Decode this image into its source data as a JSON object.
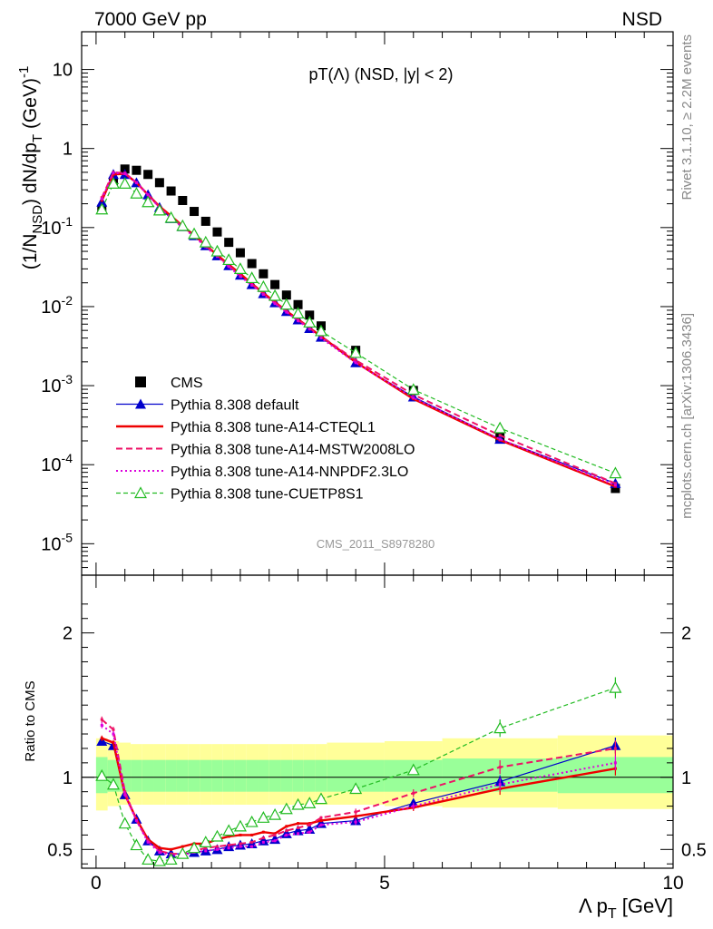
{
  "header": {
    "left_label": "7000 GeV pp",
    "right_label": "NSD"
  },
  "side_labels": {
    "rivet": "Rivet 3.1.10, ≥ 2.2M events",
    "mcplots": "mcplots.cern.ch [arXiv:1306.3436]"
  },
  "analysis_tag": "CMS_2011_S8978280",
  "chart_data": [
    {
      "type": "scatter",
      "panel": "main",
      "title": "pT(Λ) (NSD, |y| < 2)",
      "ylabel": "(1/N_NSD) dN/dp_T (GeV)^-1",
      "yscale": "log",
      "ylim": [
        4e-06,
        30
      ],
      "xlim": [
        -0.25,
        10
      ],
      "legend_position": "lower-left",
      "y_tick_labels": [
        "10^-5",
        "10^-4",
        "10^-3",
        "10^-2",
        "10^-1",
        "1",
        "10"
      ],
      "series": [
        {
          "name": "CMS",
          "style": "data",
          "color": "#000000",
          "x": [
            0.1,
            0.3,
            0.5,
            0.7,
            0.9,
            1.1,
            1.3,
            1.5,
            1.7,
            1.9,
            2.1,
            2.3,
            2.5,
            2.7,
            2.9,
            3.1,
            3.3,
            3.5,
            3.7,
            3.9,
            4.5,
            5.5,
            7.0,
            9.0
          ],
          "y": [
            0.17,
            0.38,
            0.55,
            0.53,
            0.47,
            0.37,
            0.29,
            0.22,
            0.16,
            0.12,
            0.088,
            0.065,
            0.048,
            0.035,
            0.026,
            0.019,
            0.014,
            0.0106,
            0.0078,
            0.0057,
            0.0028,
            0.00087,
            0.00022,
            5e-05
          ]
        },
        {
          "name": "Pythia 8.308 default",
          "style": "tri",
          "color": "#0000cc",
          "x": [
            0.1,
            0.3,
            0.5,
            0.7,
            0.9,
            1.1,
            1.3,
            1.5,
            1.7,
            1.9,
            2.1,
            2.3,
            2.5,
            2.7,
            2.9,
            3.1,
            3.3,
            3.5,
            3.7,
            3.9,
            4.5,
            5.5,
            7.0,
            9.0
          ],
          "y": [
            0.21,
            0.47,
            0.47,
            0.37,
            0.26,
            0.18,
            0.13,
            0.103,
            0.079,
            0.059,
            0.044,
            0.033,
            0.025,
            0.019,
            0.0146,
            0.0112,
            0.0087,
            0.0068,
            0.0053,
            0.0041,
            0.00195,
            0.00072,
            0.00021,
            5.8e-05
          ]
        },
        {
          "name": "Pythia 8.308 tune-A14-CTEQL1",
          "style": "solid",
          "color": "#ee0000",
          "x": [
            0.1,
            0.3,
            0.5,
            0.7,
            0.9,
            1.1,
            1.3,
            1.5,
            1.7,
            1.9,
            2.1,
            2.3,
            2.5,
            2.7,
            2.9,
            3.1,
            3.3,
            3.5,
            3.7,
            3.9,
            4.5,
            5.5,
            7.0,
            9.0
          ],
          "y": [
            0.22,
            0.47,
            0.48,
            0.37,
            0.26,
            0.185,
            0.14,
            0.105,
            0.08,
            0.06,
            0.045,
            0.034,
            0.026,
            0.0195,
            0.0148,
            0.0114,
            0.0088,
            0.0069,
            0.0054,
            0.0042,
            0.00198,
            0.00068,
            0.000205,
            5.3e-05
          ]
        },
        {
          "name": "Pythia 8.308 tune-A14-MSTW2008LO",
          "style": "dashed",
          "color": "#ee1166",
          "x": [
            0.1,
            0.3,
            0.5,
            0.7,
            0.9,
            1.1,
            1.3,
            1.5,
            1.7,
            1.9,
            2.1,
            2.3,
            2.5,
            2.7,
            2.9,
            3.1,
            3.3,
            3.5,
            3.7,
            3.9,
            4.5,
            5.5,
            7.0,
            9.0
          ],
          "y": [
            0.24,
            0.5,
            0.49,
            0.37,
            0.26,
            0.18,
            0.135,
            0.103,
            0.079,
            0.059,
            0.044,
            0.033,
            0.025,
            0.0191,
            0.0146,
            0.0112,
            0.0087,
            0.0068,
            0.0054,
            0.0042,
            0.0021,
            0.00077,
            0.000235,
            5.8e-05
          ]
        },
        {
          "name": "Pythia 8.308 tune-A14-NNPDF2.3LO",
          "style": "dotted",
          "color": "#dd00dd",
          "x": [
            0.1,
            0.3,
            0.5,
            0.7,
            0.9,
            1.1,
            1.3,
            1.5,
            1.7,
            1.9,
            2.1,
            2.3,
            2.5,
            2.7,
            2.9,
            3.1,
            3.3,
            3.5,
            3.7,
            3.9,
            4.5,
            5.5,
            7.0,
            9.0
          ],
          "y": [
            0.23,
            0.49,
            0.48,
            0.37,
            0.26,
            0.178,
            0.132,
            0.1,
            0.077,
            0.057,
            0.043,
            0.032,
            0.024,
            0.0186,
            0.0142,
            0.0109,
            0.0085,
            0.0066,
            0.0052,
            0.004,
            0.00195,
            0.0007,
            0.00021,
            5.5e-05
          ]
        },
        {
          "name": "Pythia 8.308 tune-CUETP8S1",
          "style": "opentri",
          "color": "#22bb22",
          "x": [
            0.1,
            0.3,
            0.5,
            0.7,
            0.9,
            1.1,
            1.3,
            1.5,
            1.7,
            1.9,
            2.1,
            2.3,
            2.5,
            2.7,
            2.9,
            3.1,
            3.3,
            3.5,
            3.7,
            3.9,
            4.5,
            5.5,
            7.0,
            9.0
          ],
          "y": [
            0.17,
            0.36,
            0.36,
            0.27,
            0.21,
            0.165,
            0.133,
            0.105,
            0.083,
            0.065,
            0.05,
            0.039,
            0.03,
            0.023,
            0.0178,
            0.0137,
            0.0106,
            0.0082,
            0.0063,
            0.0049,
            0.0026,
            0.00089,
            0.00029,
            7.8e-05
          ]
        }
      ]
    },
    {
      "type": "line",
      "panel": "ratio",
      "ylabel": "Ratio to CMS",
      "ylim": [
        0.37,
        2.4
      ],
      "xlim": [
        -0.25,
        10
      ],
      "x_ticks": [
        0,
        5,
        10
      ],
      "x_tick_labels": [
        "0",
        "5",
        "10"
      ],
      "y_ticks": [
        0.5,
        1,
        2
      ],
      "y_tick_labels": [
        "0.5",
        "1",
        "2"
      ],
      "xlabel": "Λ p_T [GeV]",
      "bands": {
        "edges": [
          0,
          0.2,
          0.4,
          0.6,
          0.8,
          1.0,
          1.2,
          1.4,
          1.6,
          1.8,
          2.0,
          2.2,
          2.4,
          2.6,
          2.8,
          3.0,
          3.2,
          3.4,
          3.6,
          3.8,
          4.0,
          5.0,
          6.0,
          8.0,
          10.0
        ],
        "yellow": [
          [
            0.77,
            1.27
          ],
          [
            0.8,
            1.25
          ],
          [
            0.81,
            1.24
          ],
          [
            0.81,
            1.23
          ],
          [
            0.81,
            1.23
          ],
          [
            0.81,
            1.23
          ],
          [
            0.81,
            1.23
          ],
          [
            0.81,
            1.23
          ],
          [
            0.81,
            1.23
          ],
          [
            0.81,
            1.23
          ],
          [
            0.81,
            1.23
          ],
          [
            0.81,
            1.23
          ],
          [
            0.81,
            1.23
          ],
          [
            0.81,
            1.23
          ],
          [
            0.81,
            1.23
          ],
          [
            0.81,
            1.23
          ],
          [
            0.81,
            1.23
          ],
          [
            0.81,
            1.23
          ],
          [
            0.81,
            1.23
          ],
          [
            0.81,
            1.23
          ],
          [
            0.81,
            1.24
          ],
          [
            0.8,
            1.25
          ],
          [
            0.79,
            1.27
          ],
          [
            0.78,
            1.29
          ]
        ],
        "green": [
          [
            0.89,
            1.14
          ],
          [
            0.9,
            1.12
          ],
          [
            0.9,
            1.12
          ],
          [
            0.9,
            1.12
          ],
          [
            0.9,
            1.12
          ],
          [
            0.9,
            1.12
          ],
          [
            0.9,
            1.12
          ],
          [
            0.9,
            1.12
          ],
          [
            0.9,
            1.12
          ],
          [
            0.9,
            1.12
          ],
          [
            0.9,
            1.12
          ],
          [
            0.9,
            1.12
          ],
          [
            0.9,
            1.12
          ],
          [
            0.9,
            1.12
          ],
          [
            0.9,
            1.12
          ],
          [
            0.9,
            1.12
          ],
          [
            0.9,
            1.12
          ],
          [
            0.9,
            1.12
          ],
          [
            0.9,
            1.12
          ],
          [
            0.9,
            1.12
          ],
          [
            0.9,
            1.12
          ],
          [
            0.9,
            1.12
          ],
          [
            0.9,
            1.13
          ],
          [
            0.89,
            1.14
          ]
        ]
      },
      "series": [
        {
          "name": "Pythia 8.308 default",
          "style": "tri",
          "color": "#0000cc",
          "x": [
            0.1,
            0.3,
            0.5,
            0.7,
            0.9,
            1.1,
            1.3,
            1.5,
            1.7,
            1.9,
            2.1,
            2.3,
            2.5,
            2.7,
            2.9,
            3.1,
            3.3,
            3.5,
            3.7,
            3.9,
            4.5,
            5.5,
            7.0,
            9.0
          ],
          "y": [
            1.25,
            1.22,
            0.88,
            0.71,
            0.56,
            0.49,
            0.47,
            0.47,
            0.48,
            0.49,
            0.5,
            0.52,
            0.53,
            0.54,
            0.56,
            0.57,
            0.61,
            0.63,
            0.64,
            0.68,
            0.7,
            0.82,
            0.97,
            1.22
          ]
        },
        {
          "name": "Pythia 8.308 tune-A14-CTEQL1",
          "style": "solid",
          "color": "#ee0000",
          "x": [
            0.1,
            0.3,
            0.5,
            0.7,
            0.9,
            1.1,
            1.3,
            1.5,
            1.7,
            1.9,
            2.1,
            2.3,
            2.5,
            2.7,
            2.9,
            3.1,
            3.3,
            3.5,
            3.7,
            3.9,
            4.5,
            5.5,
            7.0,
            9.0
          ],
          "y": [
            1.27,
            1.24,
            0.88,
            0.71,
            0.57,
            0.51,
            0.5,
            0.52,
            0.54,
            0.54,
            0.57,
            0.59,
            0.6,
            0.6,
            0.62,
            0.61,
            0.66,
            0.68,
            0.68,
            0.7,
            0.73,
            0.79,
            0.92,
            1.06
          ]
        },
        {
          "name": "Pythia 8.308 tune-A14-MSTW2008LO",
          "style": "dashed",
          "color": "#ee1166",
          "x": [
            0.1,
            0.3,
            0.5,
            0.7,
            0.9,
            1.1,
            1.3,
            1.5,
            1.7,
            1.9,
            2.1,
            2.3,
            2.5,
            2.7,
            2.9,
            3.1,
            3.3,
            3.5,
            3.7,
            3.9,
            4.5,
            5.5,
            7.0,
            9.0
          ],
          "y": [
            1.4,
            1.33,
            0.9,
            0.7,
            0.56,
            0.49,
            0.47,
            0.47,
            0.49,
            0.51,
            0.52,
            0.53,
            0.54,
            0.55,
            0.58,
            0.6,
            0.63,
            0.65,
            0.67,
            0.72,
            0.76,
            0.89,
            1.07,
            1.2
          ]
        },
        {
          "name": "Pythia 8.308 tune-A14-NNPDF2.3LO",
          "style": "dotted",
          "color": "#dd00dd",
          "x": [
            0.1,
            0.3,
            0.5,
            0.7,
            0.9,
            1.1,
            1.3,
            1.5,
            1.7,
            1.9,
            2.1,
            2.3,
            2.5,
            2.7,
            2.9,
            3.1,
            3.3,
            3.5,
            3.7,
            3.9,
            4.5,
            5.5,
            7.0,
            9.0
          ],
          "y": [
            1.36,
            1.3,
            0.88,
            0.7,
            0.55,
            0.48,
            0.46,
            0.46,
            0.48,
            0.49,
            0.5,
            0.51,
            0.52,
            0.52,
            0.55,
            0.56,
            0.6,
            0.61,
            0.62,
            0.67,
            0.69,
            0.8,
            0.95,
            1.1
          ]
        },
        {
          "name": "Pythia 8.308 tune-CUETP8S1",
          "style": "opentri",
          "color": "#22bb22",
          "x": [
            0.1,
            0.3,
            0.5,
            0.7,
            0.9,
            1.1,
            1.3,
            1.5,
            1.7,
            1.9,
            2.1,
            2.3,
            2.5,
            2.7,
            2.9,
            3.1,
            3.3,
            3.5,
            3.7,
            3.9,
            4.5,
            5.5,
            7.0,
            9.0
          ],
          "y": [
            1.01,
            0.95,
            0.68,
            0.53,
            0.43,
            0.42,
            0.43,
            0.47,
            0.51,
            0.55,
            0.59,
            0.63,
            0.66,
            0.69,
            0.72,
            0.74,
            0.78,
            0.81,
            0.82,
            0.85,
            0.92,
            1.05,
            1.34,
            1.62
          ]
        }
      ]
    }
  ]
}
